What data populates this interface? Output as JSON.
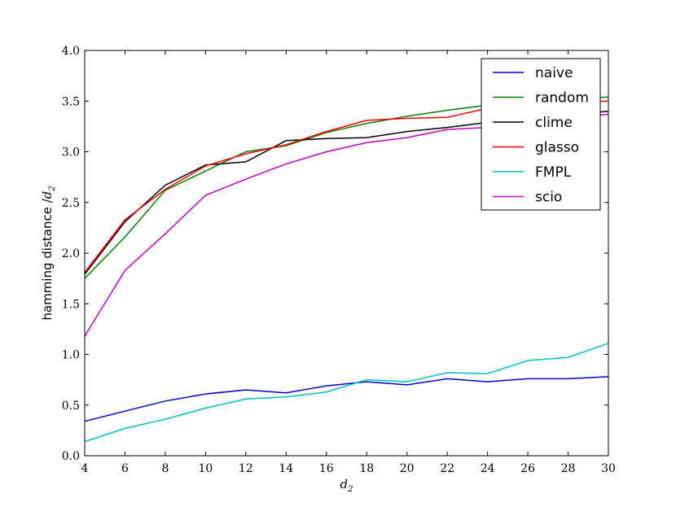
{
  "chart_data": {
    "type": "line",
    "xlabel": "d",
    "xlabel_sub": "2",
    "ylabel": "hamming distance /",
    "ylabel_var": "d",
    "ylabel_sub": "2",
    "xlim": [
      4,
      30
    ],
    "ylim": [
      0.0,
      4.0
    ],
    "xticks": [
      4,
      6,
      8,
      10,
      12,
      14,
      16,
      18,
      20,
      22,
      24,
      26,
      28,
      30
    ],
    "yticks": [
      "0.0",
      "0.5",
      "1.0",
      "1.5",
      "2.0",
      "2.5",
      "3.0",
      "3.5",
      "4.0"
    ],
    "grid": false,
    "legend_position": "top-right",
    "x": [
      4,
      6,
      8,
      10,
      12,
      14,
      16,
      18,
      20,
      22,
      24,
      26,
      28,
      30
    ],
    "series": [
      {
        "name": "naive",
        "color": "#0000cc",
        "values": [
          0.34,
          0.44,
          0.54,
          0.61,
          0.65,
          0.62,
          0.69,
          0.73,
          0.7,
          0.76,
          0.73,
          0.76,
          0.76,
          0.78
        ]
      },
      {
        "name": "random",
        "color": "#008000",
        "values": [
          1.75,
          2.16,
          2.62,
          2.81,
          3.0,
          3.06,
          3.19,
          3.28,
          3.35,
          3.41,
          3.46,
          3.5,
          3.52,
          3.54
        ]
      },
      {
        "name": "clime",
        "color": "#000000",
        "values": [
          1.79,
          2.31,
          2.67,
          2.87,
          2.9,
          3.11,
          3.13,
          3.14,
          3.2,
          3.24,
          3.29,
          3.33,
          3.37,
          3.4
        ]
      },
      {
        "name": "glasso",
        "color": "#ff0000",
        "values": [
          1.81,
          2.33,
          2.63,
          2.86,
          2.98,
          3.07,
          3.2,
          3.31,
          3.33,
          3.34,
          3.43,
          3.47,
          3.49,
          3.5
        ]
      },
      {
        "name": "FMPL",
        "color": "#00bfbf",
        "values": [
          0.14,
          0.27,
          0.36,
          0.47,
          0.56,
          0.58,
          0.63,
          0.75,
          0.73,
          0.82,
          0.81,
          0.94,
          0.97,
          1.11
        ]
      },
      {
        "name": "scio",
        "color": "#bf00bf",
        "values": [
          1.18,
          1.83,
          2.19,
          2.57,
          2.73,
          2.88,
          3.0,
          3.09,
          3.14,
          3.22,
          3.24,
          3.28,
          3.33,
          3.37
        ]
      }
    ]
  }
}
